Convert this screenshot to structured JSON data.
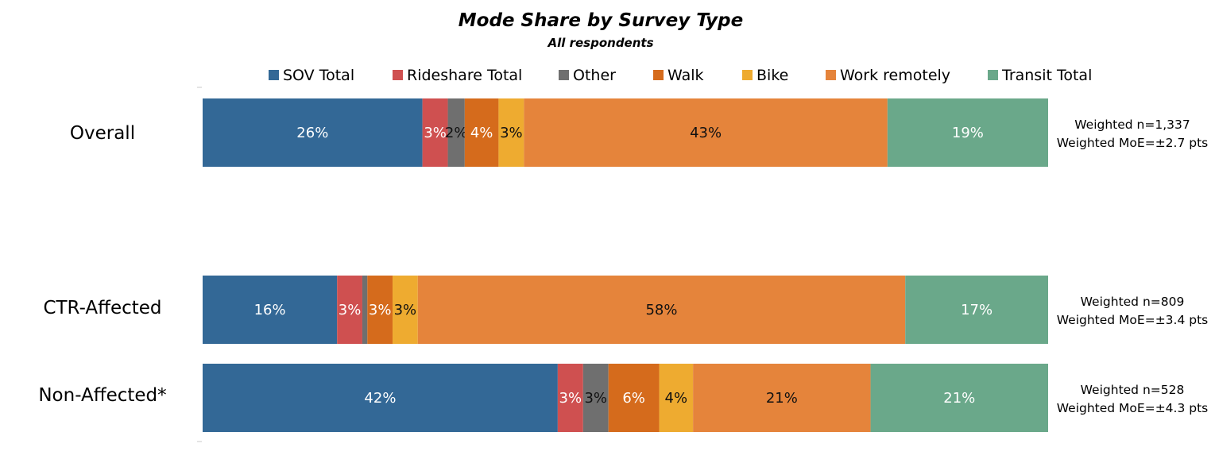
{
  "chart_data": {
    "type": "bar",
    "orientation": "horizontal",
    "stacked": true,
    "title": "Mode Share by Survey Type",
    "subtitle": "All respondents",
    "legend_position": "top",
    "xlim": [
      0,
      100
    ],
    "categories": [
      "Overall",
      "CTR-Affected",
      "Non-Affected*"
    ],
    "series": [
      {
        "name": "SOV Total",
        "color": "#336896",
        "label_color": "#ffffff",
        "values": [
          26,
          16,
          42
        ],
        "labels": [
          "26%",
          "16%",
          "42%"
        ]
      },
      {
        "name": "Rideshare Total",
        "color": "#cf5050",
        "label_color": "#ffffff",
        "values": [
          3,
          3,
          3
        ],
        "labels": [
          "3%",
          "3%",
          "3%"
        ]
      },
      {
        "name": "Other",
        "color": "#6f6f6f",
        "label_color": "#111111",
        "values": [
          2,
          0.6,
          3
        ],
        "labels": [
          "2%",
          "",
          "3%"
        ]
      },
      {
        "name": "Walk",
        "color": "#d56b1c",
        "label_color": "#ffffff",
        "values": [
          4,
          3,
          6
        ],
        "labels": [
          "4%",
          "3%",
          "6%"
        ]
      },
      {
        "name": "Bike",
        "color": "#eeab30",
        "label_color": "#111111",
        "values": [
          3,
          3,
          4
        ],
        "labels": [
          "3%",
          "3%",
          "4%"
        ]
      },
      {
        "name": "Work remotely",
        "color": "#e5843b",
        "label_color": "#111111",
        "values": [
          43,
          58,
          21
        ],
        "labels": [
          "43%",
          "58%",
          "21%"
        ]
      },
      {
        "name": "Transit Total",
        "color": "#6aa88a",
        "label_color": "#ffffff",
        "values": [
          19,
          17,
          21
        ],
        "labels": [
          "19%",
          "17%",
          "21%"
        ]
      }
    ],
    "annotations": [
      {
        "line1": "Weighted n=1,337",
        "line2": "Weighted MoE=±2.7 pts"
      },
      {
        "line1": "Weighted n=809",
        "line2": "Weighted MoE=±3.4 pts"
      },
      {
        "line1": "Weighted n=528",
        "line2": "Weighted MoE=±4.3 pts"
      }
    ]
  }
}
